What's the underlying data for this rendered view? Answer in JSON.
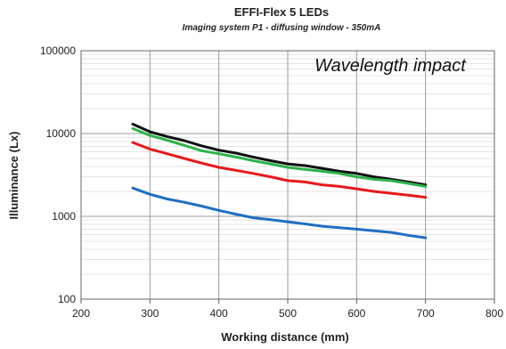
{
  "chart_data": {
    "type": "line",
    "title": "EFFI-Flex 5 LEDs",
    "subtitle": "Imaging system P1 - diffusing window - 350mA",
    "annotation": "Wavelength impact",
    "xlabel": "Working distance (mm)",
    "ylabel": "Illuminance (Lx)",
    "xlim": [
      200,
      800
    ],
    "ylim": [
      100,
      100000
    ],
    "yscale": "log",
    "grid": true,
    "legend": "none",
    "x_ticks": [
      "200",
      "300",
      "400",
      "500",
      "600",
      "700",
      "800"
    ],
    "y_ticks": [
      "100",
      "1000",
      "10000",
      "100000"
    ],
    "x": [
      275,
      300,
      325,
      350,
      375,
      400,
      425,
      450,
      475,
      500,
      525,
      550,
      575,
      600,
      625,
      650,
      675,
      700
    ],
    "series": [
      {
        "color": "#111111",
        "values": [
          13000,
          10500,
          9200,
          8200,
          7100,
          6300,
          5800,
          5200,
          4700,
          4300,
          4100,
          3800,
          3500,
          3300,
          3000,
          2800,
          2600,
          2400
        ]
      },
      {
        "color": "#2db34a",
        "values": [
          11500,
          9500,
          8300,
          7200,
          6200,
          5700,
          5200,
          4700,
          4300,
          3900,
          3700,
          3500,
          3300,
          3000,
          2800,
          2700,
          2500,
          2300
        ]
      },
      {
        "color": "#e8191a",
        "values": [
          7800,
          6500,
          5700,
          5000,
          4400,
          3900,
          3600,
          3300,
          3000,
          2700,
          2600,
          2400,
          2300,
          2150,
          2000,
          1900,
          1800,
          1700
        ]
      },
      {
        "color": "#1f6fc4",
        "values": [
          2200,
          1850,
          1620,
          1480,
          1330,
          1180,
          1060,
          960,
          910,
          860,
          810,
          760,
          730,
          700,
          670,
          640,
          590,
          550
        ]
      }
    ]
  }
}
